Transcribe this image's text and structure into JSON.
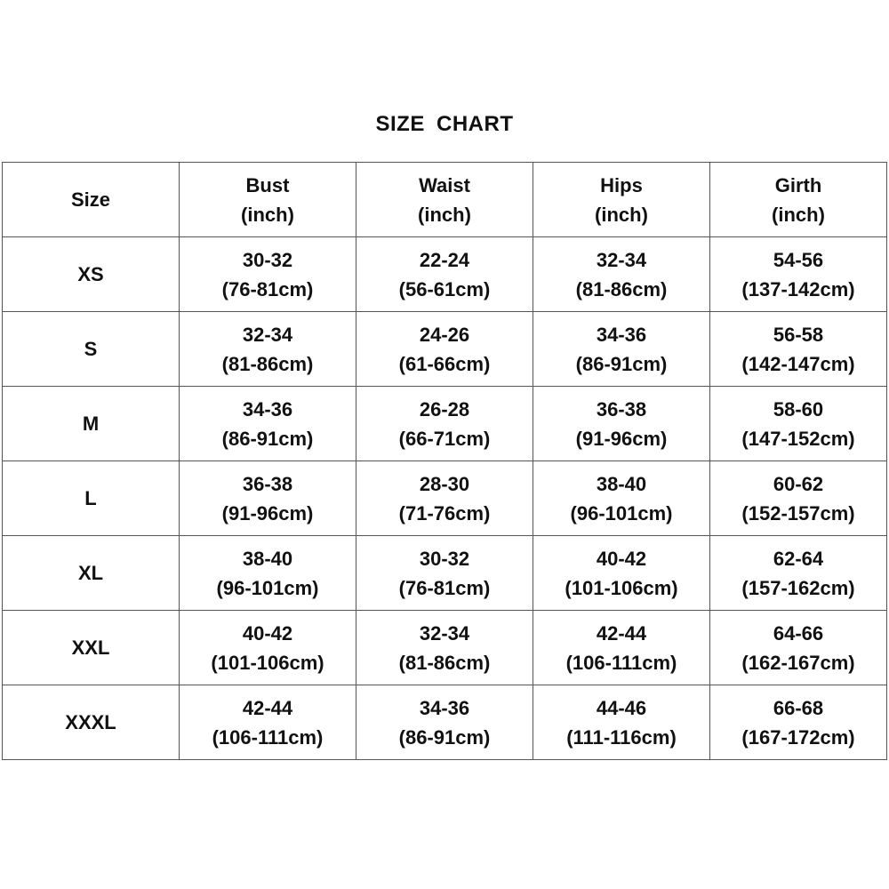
{
  "title": "SIZE  CHART",
  "headers": [
    {
      "l1": "Size",
      "l2": ""
    },
    {
      "l1": "Bust",
      "l2": "(inch)"
    },
    {
      "l1": "Waist",
      "l2": "(inch)"
    },
    {
      "l1": "Hips",
      "l2": "(inch)"
    },
    {
      "l1": "Girth",
      "l2": "(inch)"
    }
  ],
  "rows": [
    {
      "size": "XS",
      "cells": [
        [
          "30-32",
          "(76-81cm)"
        ],
        [
          "22-24",
          "(56-61cm)"
        ],
        [
          "32-34",
          "(81-86cm)"
        ],
        [
          "54-56",
          "(137-142cm)"
        ]
      ]
    },
    {
      "size": "S",
      "cells": [
        [
          "32-34",
          "(81-86cm)"
        ],
        [
          "24-26",
          "(61-66cm)"
        ],
        [
          "34-36",
          "(86-91cm)"
        ],
        [
          "56-58",
          "(142-147cm)"
        ]
      ]
    },
    {
      "size": "M",
      "cells": [
        [
          "34-36",
          "(86-91cm)"
        ],
        [
          "26-28",
          "(66-71cm)"
        ],
        [
          "36-38",
          "(91-96cm)"
        ],
        [
          "58-60",
          "(147-152cm)"
        ]
      ]
    },
    {
      "size": "L",
      "cells": [
        [
          "36-38",
          "(91-96cm)"
        ],
        [
          "28-30",
          "(71-76cm)"
        ],
        [
          "38-40",
          "(96-101cm)"
        ],
        [
          "60-62",
          "(152-157cm)"
        ]
      ]
    },
    {
      "size": "XL",
      "cells": [
        [
          "38-40",
          "(96-101cm)"
        ],
        [
          "30-32",
          "(76-81cm)"
        ],
        [
          "40-42",
          "(101-106cm)"
        ],
        [
          "62-64",
          "(157-162cm)"
        ]
      ]
    },
    {
      "size": "XXL",
      "cells": [
        [
          "40-42",
          "(101-106cm)"
        ],
        [
          "32-34",
          "(81-86cm)"
        ],
        [
          "42-44",
          "(106-111cm)"
        ],
        [
          "64-66",
          "(162-167cm)"
        ]
      ]
    },
    {
      "size": "XXXL",
      "cells": [
        [
          "42-44",
          "(106-111cm)"
        ],
        [
          "34-36",
          "(86-91cm)"
        ],
        [
          "44-46",
          "(111-116cm)"
        ],
        [
          "66-68",
          "(167-172cm)"
        ]
      ]
    }
  ]
}
